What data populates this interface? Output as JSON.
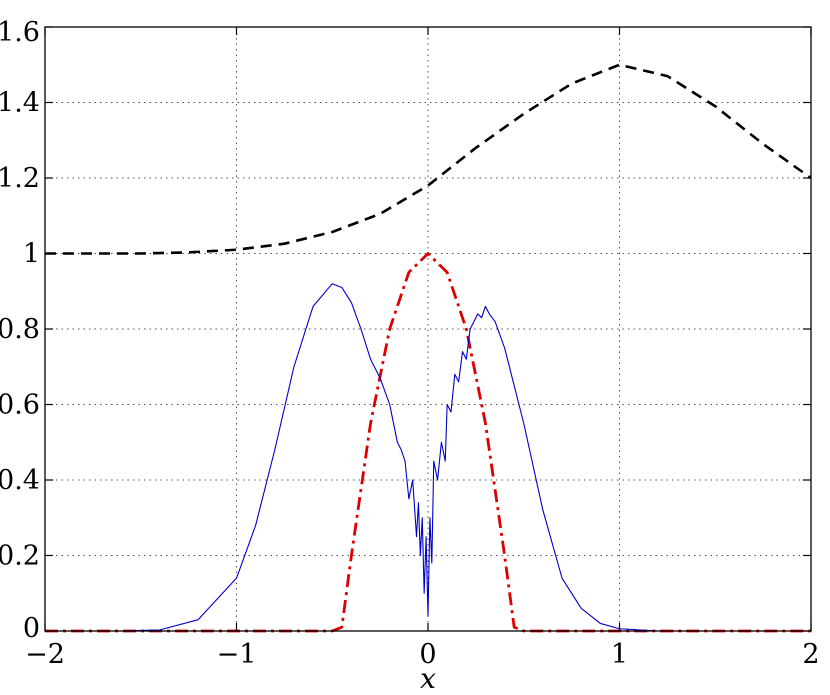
{
  "chart_data": {
    "type": "line",
    "title": "",
    "xlabel": "x",
    "ylabel": "",
    "xlim": [
      -2,
      2
    ],
    "ylim": [
      0,
      1.6
    ],
    "xticks": [
      -2,
      -1,
      0,
      1,
      2
    ],
    "xtick_labels": [
      "−2",
      "−1",
      "0",
      "1",
      "2"
    ],
    "yticks": [
      0,
      0.2,
      0.4,
      0.6,
      0.8,
      1,
      1.2,
      1.4,
      1.6
    ],
    "ytick_labels": [
      "0",
      "0.2",
      "0.4",
      "0.6",
      "0.8",
      "1",
      "1.2",
      "1.4",
      "1.6"
    ],
    "grid": true,
    "legend": "none",
    "series": [
      {
        "style": "dashed",
        "color": "#000000",
        "x": [
          -2,
          -1.75,
          -1.5,
          -1.25,
          -1,
          -0.75,
          -0.5,
          -0.25,
          0,
          0.25,
          0.5,
          0.75,
          1,
          1.25,
          1.5,
          1.75,
          2
        ],
        "y": [
          1,
          1,
          1,
          1.003,
          1.01,
          1.026,
          1.057,
          1.105,
          1.18,
          1.28,
          1.37,
          1.45,
          1.5,
          1.47,
          1.39,
          1.29,
          1.2
        ]
      },
      {
        "style": "dash-dot",
        "color": "#dd0000",
        "x": [
          -2,
          -0.5,
          -0.45,
          -0.4,
          -0.3,
          -0.2,
          -0.1,
          0,
          0.1,
          0.2,
          0.3,
          0.4,
          0.45,
          0.5,
          2
        ],
        "y": [
          0,
          0,
          0.01,
          0.2,
          0.55,
          0.8,
          0.95,
          1,
          0.95,
          0.8,
          0.55,
          0.2,
          0.01,
          0,
          0
        ]
      },
      {
        "style": "solid",
        "color": "#0000cc",
        "x": [
          -2,
          -1.6,
          -1.4,
          -1.2,
          -1,
          -0.9,
          -0.8,
          -0.7,
          -0.6,
          -0.5,
          -0.45,
          -0.4,
          -0.35,
          -0.3,
          -0.25,
          -0.2,
          -0.18,
          -0.16,
          -0.14,
          -0.12,
          -0.1,
          -0.08,
          -0.06,
          -0.05,
          -0.04,
          -0.03,
          -0.02,
          -0.01,
          0,
          0.01,
          0.02,
          0.03,
          0.05,
          0.07,
          0.09,
          0.1,
          0.12,
          0.14,
          0.16,
          0.18,
          0.2,
          0.22,
          0.24,
          0.26,
          0.28,
          0.3,
          0.32,
          0.35,
          0.4,
          0.5,
          0.6,
          0.7,
          0.8,
          0.9,
          1,
          1.2,
          1.4,
          1.6,
          2
        ],
        "y": [
          0,
          0,
          0.003,
          0.03,
          0.14,
          0.28,
          0.48,
          0.7,
          0.86,
          0.92,
          0.91,
          0.87,
          0.8,
          0.72,
          0.67,
          0.6,
          0.55,
          0.5,
          0.48,
          0.45,
          0.35,
          0.4,
          0.25,
          0.34,
          0.2,
          0.3,
          0.1,
          0.25,
          0.04,
          0.3,
          0.18,
          0.45,
          0.4,
          0.5,
          0.45,
          0.6,
          0.58,
          0.68,
          0.66,
          0.74,
          0.72,
          0.8,
          0.82,
          0.84,
          0.83,
          0.86,
          0.84,
          0.82,
          0.75,
          0.55,
          0.32,
          0.14,
          0.06,
          0.02,
          0.006,
          0,
          0,
          0,
          0
        ]
      }
    ]
  }
}
